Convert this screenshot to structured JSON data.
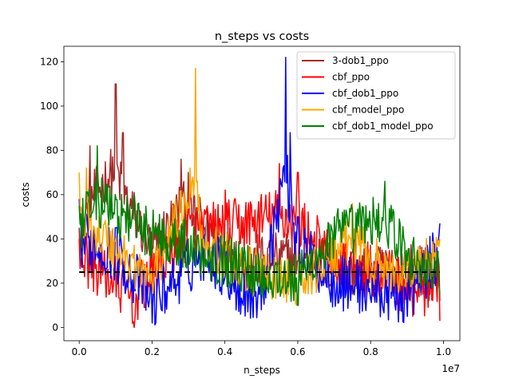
{
  "chart_data": {
    "type": "line",
    "title": "n_steps vs costs",
    "xlabel": "n_steps",
    "ylabel": "costs",
    "x_multiplier_label": "1e7",
    "xlim": [
      -0.042,
      1.045
    ],
    "ylim": [
      -6,
      127
    ],
    "x_ticks": [
      0.0,
      0.2,
      0.4,
      0.6,
      0.8,
      1.0
    ],
    "x_tick_labels": [
      "0.0",
      "0.2",
      "0.4",
      "0.6",
      "0.8",
      "1.0"
    ],
    "y_ticks": [
      0,
      20,
      40,
      60,
      80,
      100,
      120
    ],
    "y_tick_labels": [
      "0",
      "20",
      "40",
      "60",
      "80",
      "100",
      "120"
    ],
    "grid": false,
    "legend_position": "top-right",
    "reference_line": {
      "y": 25,
      "style": "dashed",
      "color": "#000000"
    },
    "n_points": 401,
    "x_start": 0.0,
    "x_end": 0.99,
    "series": [
      {
        "name": "3-dob1_ppo",
        "color": "#a52a2a",
        "mean": 34,
        "noise": 12,
        "min": 2,
        "max": 111,
        "anchors": [
          [
            0.0,
            45
          ],
          [
            0.03,
            82
          ],
          [
            0.1,
            110
          ],
          [
            0.12,
            88
          ],
          [
            0.2,
            35
          ],
          [
            0.28,
            76
          ],
          [
            0.3,
            70
          ],
          [
            0.45,
            25
          ],
          [
            0.6,
            30
          ],
          [
            0.75,
            15
          ],
          [
            0.9,
            20
          ],
          [
            0.99,
            12
          ]
        ]
      },
      {
        "name": "cbf_ppo",
        "color": "#ff0000",
        "mean": 27,
        "noise": 13,
        "min": 0,
        "max": 74,
        "anchors": [
          [
            0.0,
            40
          ],
          [
            0.15,
            0
          ],
          [
            0.3,
            60
          ],
          [
            0.4,
            62
          ],
          [
            0.55,
            74
          ],
          [
            0.6,
            70
          ],
          [
            0.7,
            30
          ],
          [
            0.8,
            25
          ],
          [
            0.9,
            10
          ],
          [
            0.99,
            3
          ]
        ]
      },
      {
        "name": "cbf_dob1_ppo",
        "color": "#0000ff",
        "mean": 22,
        "noise": 13,
        "min": 0,
        "max": 122,
        "anchors": [
          [
            0.0,
            58
          ],
          [
            0.1,
            45
          ],
          [
            0.2,
            2
          ],
          [
            0.35,
            48
          ],
          [
            0.45,
            10
          ],
          [
            0.5,
            8
          ],
          [
            0.566,
            122
          ],
          [
            0.58,
            88
          ],
          [
            0.6,
            50
          ],
          [
            0.7,
            20
          ],
          [
            0.9,
            5
          ],
          [
            0.99,
            47
          ]
        ]
      },
      {
        "name": "cbf_model_ppo",
        "color": "#ffa500",
        "mean": 23,
        "noise": 11,
        "min": 2,
        "max": 117,
        "anchors": [
          [
            0.0,
            70
          ],
          [
            0.02,
            72
          ],
          [
            0.2,
            20
          ],
          [
            0.32,
            117
          ],
          [
            0.33,
            60
          ],
          [
            0.45,
            30
          ],
          [
            0.6,
            15
          ],
          [
            0.75,
            56
          ],
          [
            0.85,
            25
          ],
          [
            0.99,
            40
          ]
        ]
      },
      {
        "name": "cbf_dob1_model_ppo",
        "color": "#008000",
        "mean": 33,
        "noise": 12,
        "min": 4,
        "max": 82,
        "anchors": [
          [
            0.0,
            55
          ],
          [
            0.05,
            82
          ],
          [
            0.15,
            60
          ],
          [
            0.3,
            40
          ],
          [
            0.5,
            15
          ],
          [
            0.6,
            10
          ],
          [
            0.7,
            50
          ],
          [
            0.84,
            66
          ],
          [
            0.9,
            30
          ],
          [
            0.99,
            15
          ]
        ]
      }
    ]
  }
}
